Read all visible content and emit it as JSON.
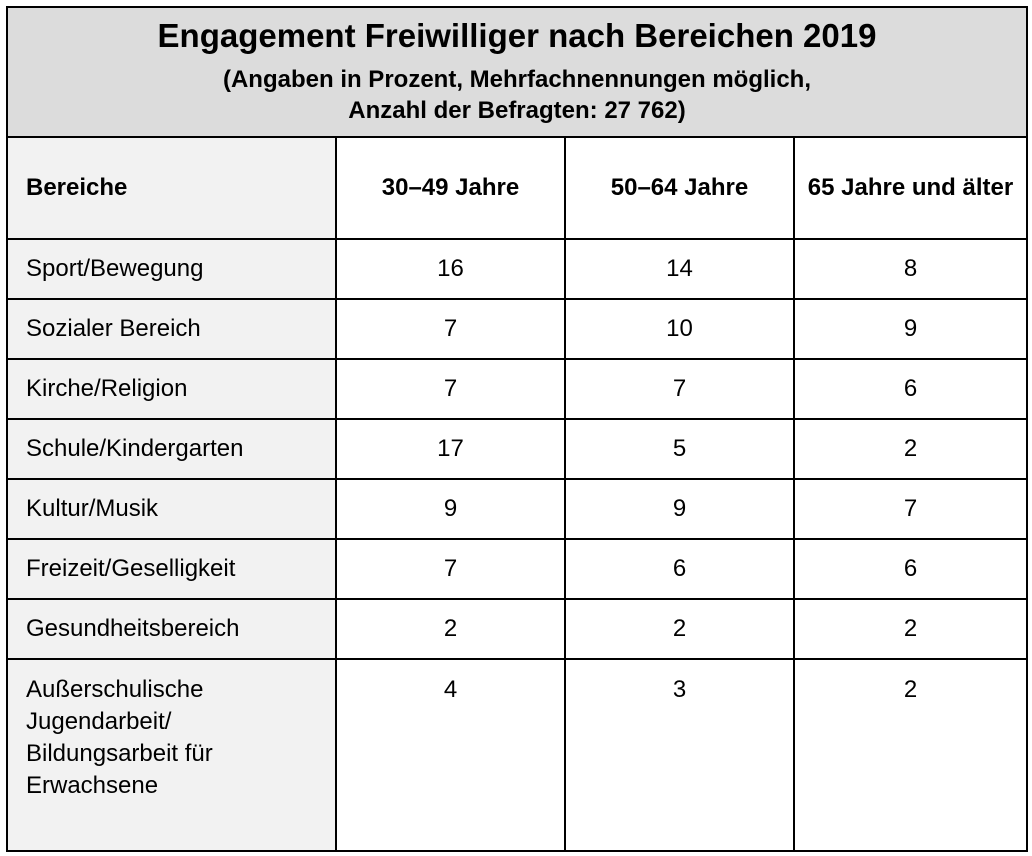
{
  "title": "Engagement Freiwilliger nach Bereichen 2019",
  "subtitle": "(Angaben in Prozent, Mehrfachnennungen möglich,\nAnzahl der Befragten: 27 762)",
  "chart_data": {
    "type": "table",
    "title": "Engagement Freiwilliger nach Bereichen 2019",
    "subtitle": "(Angaben in Prozent, Mehrfachnennungen möglich, Anzahl der Befragten: 27 762)",
    "row_header": "Bereiche",
    "columns": [
      "30–49 Jahre",
      "50–64 Jahre",
      "65 Jahre und älter"
    ],
    "rows": [
      {
        "category": "Sport/Bewegung",
        "values": [
          "16",
          "14",
          "8"
        ]
      },
      {
        "category": "Sozialer Bereich",
        "values": [
          "7",
          "10",
          "9"
        ]
      },
      {
        "category": "Kirche/Religion",
        "values": [
          "7",
          "7",
          "6"
        ]
      },
      {
        "category": "Schule/Kindergarten",
        "values": [
          "17",
          "5",
          "2"
        ]
      },
      {
        "category": "Kultur/Musik",
        "values": [
          "9",
          "9",
          "7"
        ]
      },
      {
        "category": "Freizeit/Geselligkeit",
        "values": [
          "7",
          "6",
          "6"
        ]
      },
      {
        "category": "Gesundheitsbereich",
        "values": [
          "2",
          "2",
          "2"
        ]
      },
      {
        "category": "Außerschulische\nJugendarbeit/\nBildungsarbeit für\nErwachsene",
        "values": [
          "4",
          "3",
          "2"
        ]
      }
    ]
  }
}
